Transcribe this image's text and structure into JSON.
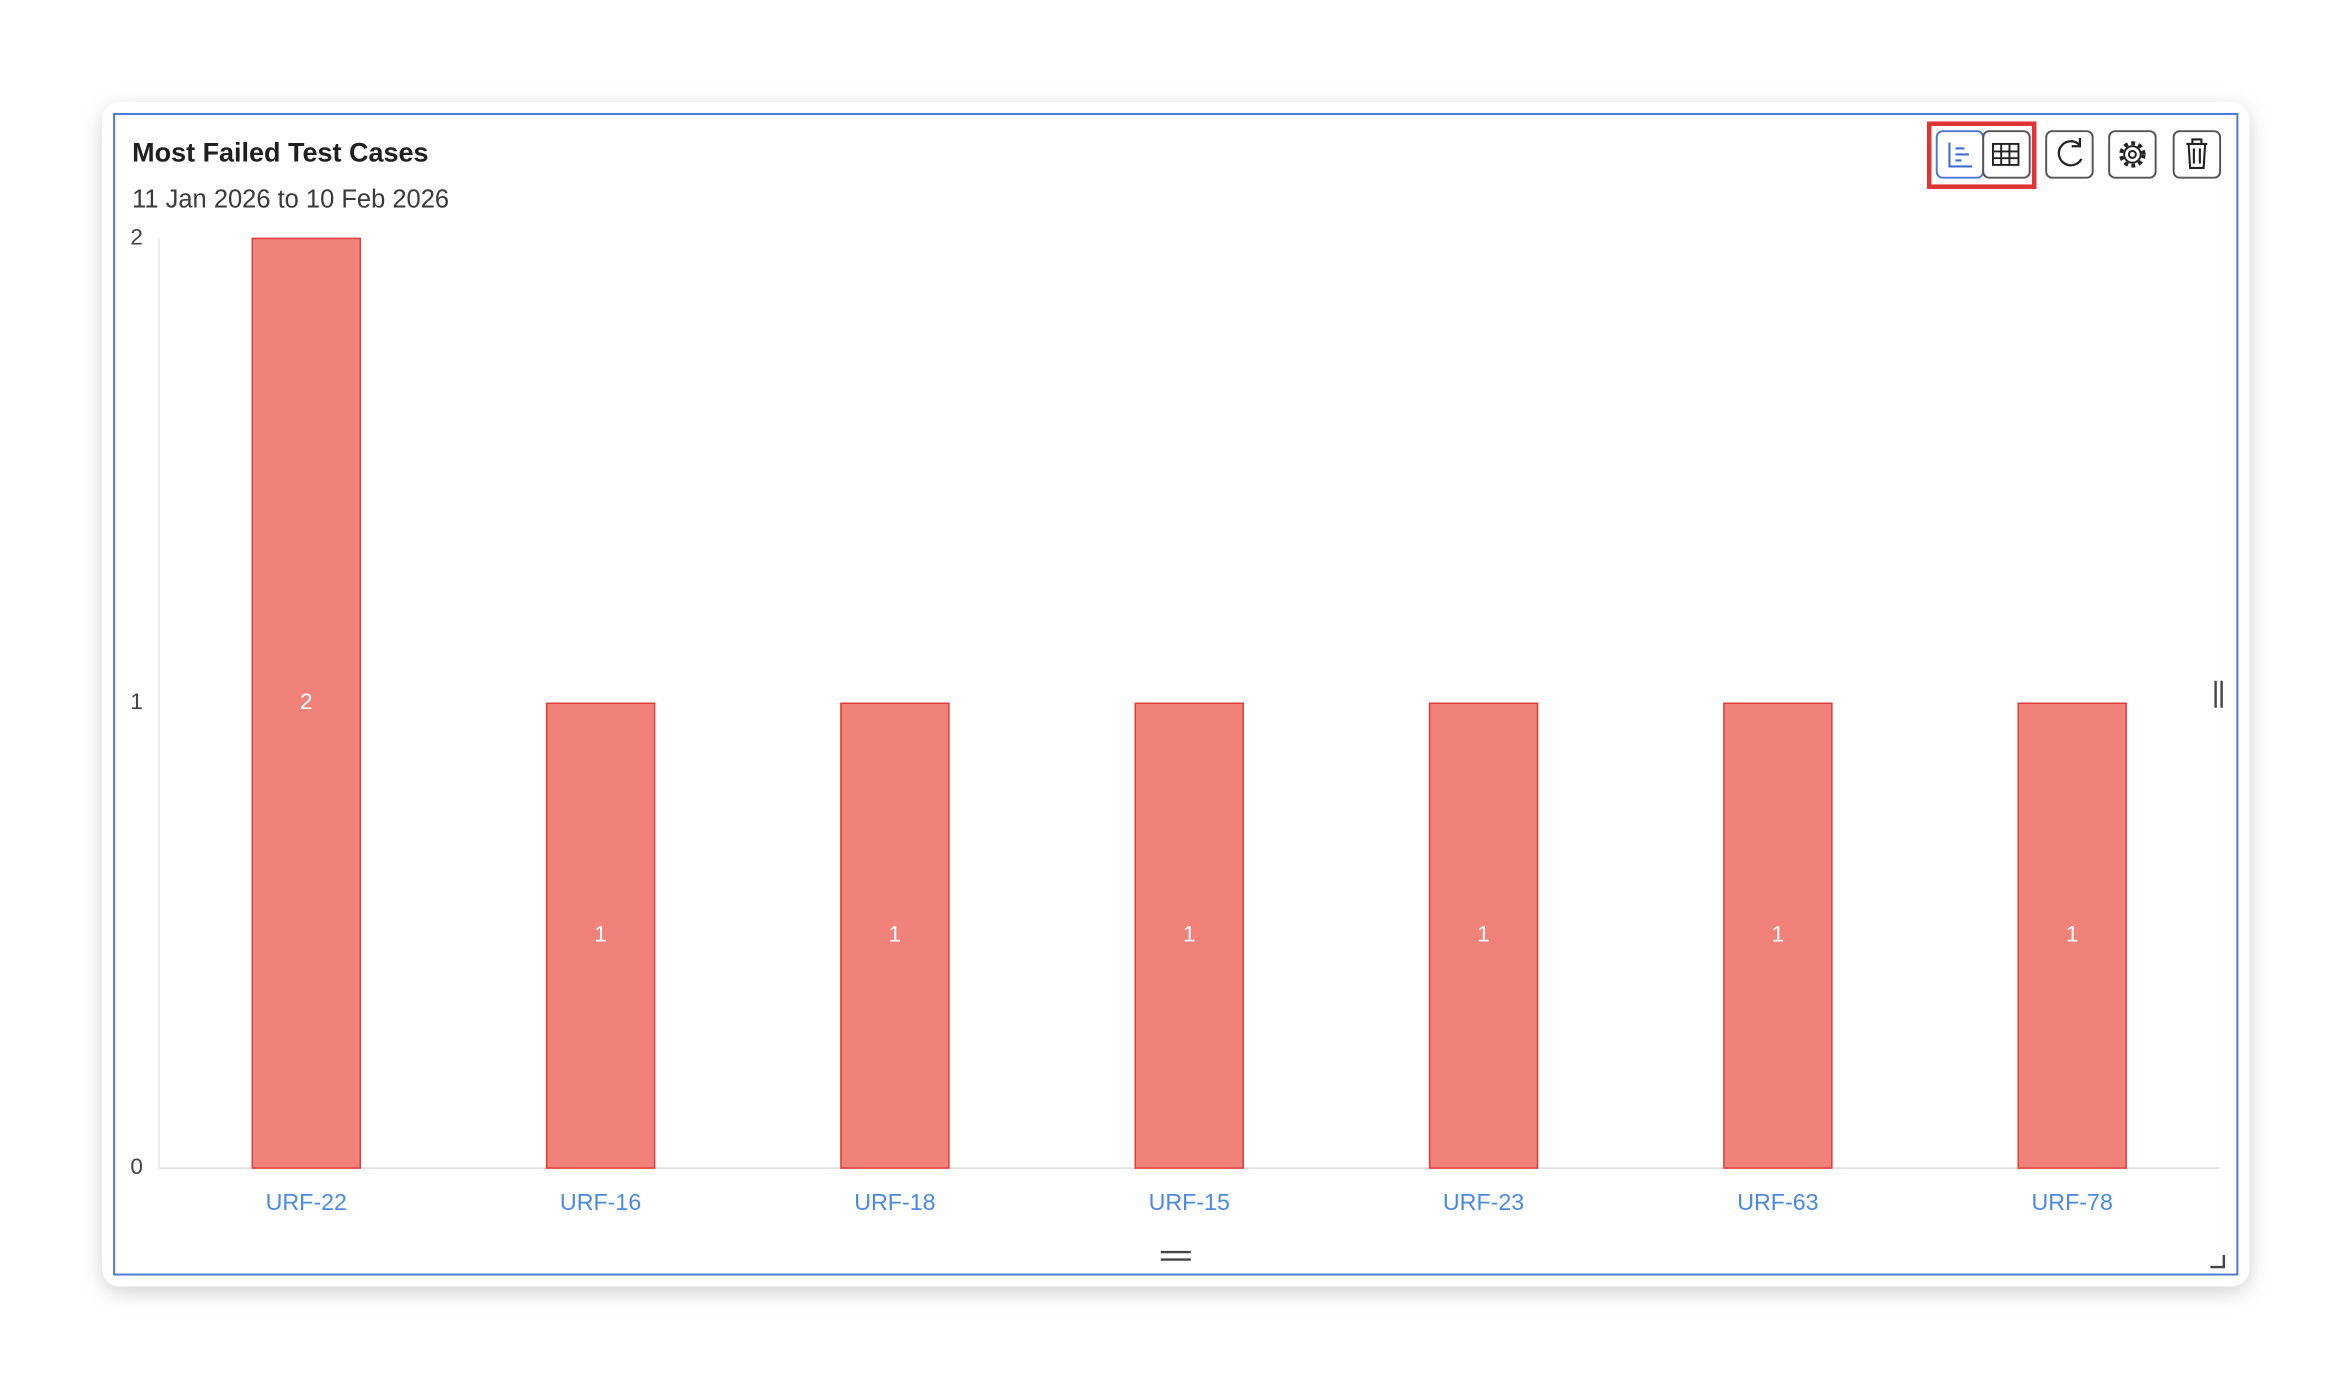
{
  "chart_data": {
    "type": "bar",
    "title": "Most Failed Test Cases",
    "subtitle": "11 Jan 2026 to 10 Feb 2026",
    "categories": [
      "URF-22",
      "URF-16",
      "URF-18",
      "URF-15",
      "URF-23",
      "URF-63",
      "URF-78"
    ],
    "values": [
      2,
      1,
      1,
      1,
      1,
      1,
      1
    ],
    "color": "#f0827a",
    "border_color": "#e23b3b",
    "ylim": [
      0,
      2
    ],
    "yticks": [
      0,
      1,
      2
    ]
  }
}
